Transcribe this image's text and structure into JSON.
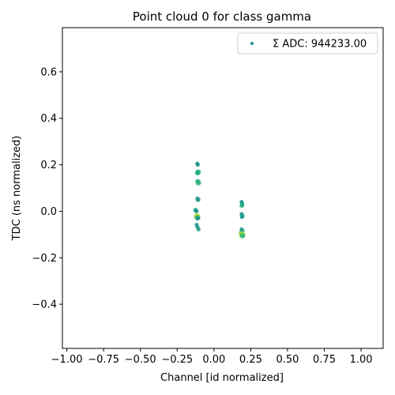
{
  "chart_data": {
    "type": "scatter",
    "title": "Point cloud 0 for class gamma",
    "xlabel": "Channel [id normalized]",
    "ylabel": "TDC (ns normalized)",
    "xlim": [
      -1.03,
      1.15
    ],
    "ylim": [
      -0.59,
      0.79
    ],
    "xticks": [
      -1.0,
      -0.75,
      -0.5,
      -0.25,
      0.0,
      0.25,
      0.5,
      0.75,
      1.0
    ],
    "xtick_labels": [
      "−1.00",
      "−0.75",
      "−0.50",
      "−0.25",
      "0.00",
      "0.25",
      "0.50",
      "0.75",
      "1.00"
    ],
    "yticks": [
      -0.4,
      -0.2,
      0.0,
      0.2,
      0.4,
      0.6
    ],
    "ytick_labels": [
      "−0.4",
      "−0.2",
      "0.0",
      "0.2",
      "0.4",
      "0.6"
    ],
    "grid": false,
    "legend": {
      "placement": "top-right",
      "entries": [
        {
          "label": "Σ ADC: 944233.00",
          "color": "#21918c"
        }
      ]
    },
    "colormap": "viridis",
    "points": [
      {
        "x": -0.113,
        "y": 0.205,
        "color": "#1f9a8a",
        "r": 2.5
      },
      {
        "x": -0.11,
        "y": 0.2,
        "color": "#21918c",
        "r": 2.5
      },
      {
        "x": -0.108,
        "y": 0.168,
        "color": "#35b779",
        "r": 3.5
      },
      {
        "x": -0.112,
        "y": 0.165,
        "color": "#22a884",
        "r": 3
      },
      {
        "x": -0.11,
        "y": 0.128,
        "color": "#2a9d8f",
        "r": 3
      },
      {
        "x": -0.106,
        "y": 0.123,
        "color": "#35b779",
        "r": 3.5
      },
      {
        "x": -0.112,
        "y": 0.055,
        "color": "#21918c",
        "r": 2.5
      },
      {
        "x": -0.108,
        "y": 0.05,
        "color": "#1f9a8a",
        "r": 3
      },
      {
        "x": -0.125,
        "y": 0.005,
        "color": "#22a884",
        "r": 3
      },
      {
        "x": -0.118,
        "y": 0.0,
        "color": "#21918c",
        "r": 2.5
      },
      {
        "x": -0.115,
        "y": -0.022,
        "color": "#b5de2b",
        "r": 4
      },
      {
        "x": -0.112,
        "y": -0.028,
        "color": "#35b779",
        "r": 3.5
      },
      {
        "x": -0.108,
        "y": -0.03,
        "color": "#21918c",
        "r": 2.5
      },
      {
        "x": -0.118,
        "y": -0.058,
        "color": "#1f9a8a",
        "r": 2.5
      },
      {
        "x": -0.112,
        "y": -0.068,
        "color": "#21918c",
        "r": 2.5
      },
      {
        "x": -0.105,
        "y": -0.078,
        "color": "#1f9a8a",
        "r": 2.5
      },
      {
        "x": 0.188,
        "y": 0.04,
        "color": "#21918c",
        "r": 2.5
      },
      {
        "x": 0.192,
        "y": 0.033,
        "color": "#1f9a8a",
        "r": 2.5
      },
      {
        "x": 0.19,
        "y": 0.025,
        "color": "#22a884",
        "r": 3
      },
      {
        "x": 0.188,
        "y": -0.012,
        "color": "#21918c",
        "r": 2.5
      },
      {
        "x": 0.192,
        "y": -0.02,
        "color": "#22a884",
        "r": 3
      },
      {
        "x": 0.19,
        "y": -0.025,
        "color": "#1f9a8a",
        "r": 2.5
      },
      {
        "x": 0.188,
        "y": -0.078,
        "color": "#21918c",
        "r": 2.5
      },
      {
        "x": 0.192,
        "y": -0.085,
        "color": "#22a884",
        "r": 3
      },
      {
        "x": 0.186,
        "y": -0.093,
        "color": "#2a9d8f",
        "r": 3
      },
      {
        "x": 0.19,
        "y": -0.1,
        "color": "#b5de2b",
        "r": 4
      },
      {
        "x": 0.194,
        "y": -0.105,
        "color": "#35b779",
        "r": 3.5
      }
    ]
  }
}
